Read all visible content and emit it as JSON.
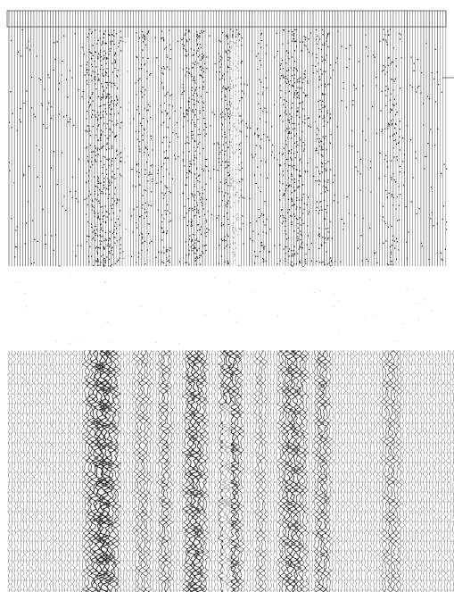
{
  "figure": {
    "panels": [
      {
        "id": "upper",
        "style": "dotted-traces",
        "ink": "#1a1a1a",
        "paper": "#ffffff"
      },
      {
        "id": "lower",
        "style": "wiggle-traces",
        "ink": "#111111",
        "paper": "#ffffff"
      }
    ]
  }
}
